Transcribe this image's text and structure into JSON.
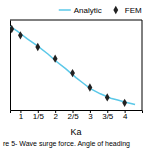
{
  "chart_data": {
    "type": "line",
    "xlabel": "Ka",
    "caption": "re 5- Wave surge force. Angle of heading",
    "xlim": [
      0.7,
      4.5
    ],
    "ylim": [
      0.05,
      1.05
    ],
    "xticks": [
      1,
      {
        "value": 1.5,
        "label": "1/5"
      },
      2,
      {
        "value": 2.5,
        "label": "2/5"
      },
      3,
      {
        "value": 3.5,
        "label": "3/5"
      },
      4
    ],
    "yticks": [],
    "tick_labels": "x",
    "grid": false,
    "legend": "upper right",
    "series": [
      {
        "name": "Analytic",
        "type": "line",
        "color": "#5bc8e8",
        "x": [
          0.7,
          0.9,
          1.0,
          1.2,
          1.5,
          1.8,
          2.0,
          2.3,
          2.6,
          2.8,
          3.0,
          3.3,
          3.6,
          3.8,
          4.0,
          4.3
        ],
        "values": [
          0.98,
          0.93,
          0.9,
          0.84,
          0.76,
          0.67,
          0.6,
          0.51,
          0.41,
          0.35,
          0.29,
          0.23,
          0.18,
          0.16,
          0.14,
          0.11
        ]
      },
      {
        "name": "FEM",
        "type": "scatter",
        "marker": "diamond",
        "color": "#222222",
        "x": [
          0.75,
          1.0,
          1.5,
          2.0,
          2.5,
          3.0,
          3.5,
          4.0
        ],
        "values": [
          0.95,
          0.88,
          0.75,
          0.62,
          0.46,
          0.3,
          0.19,
          0.13
        ]
      }
    ]
  }
}
